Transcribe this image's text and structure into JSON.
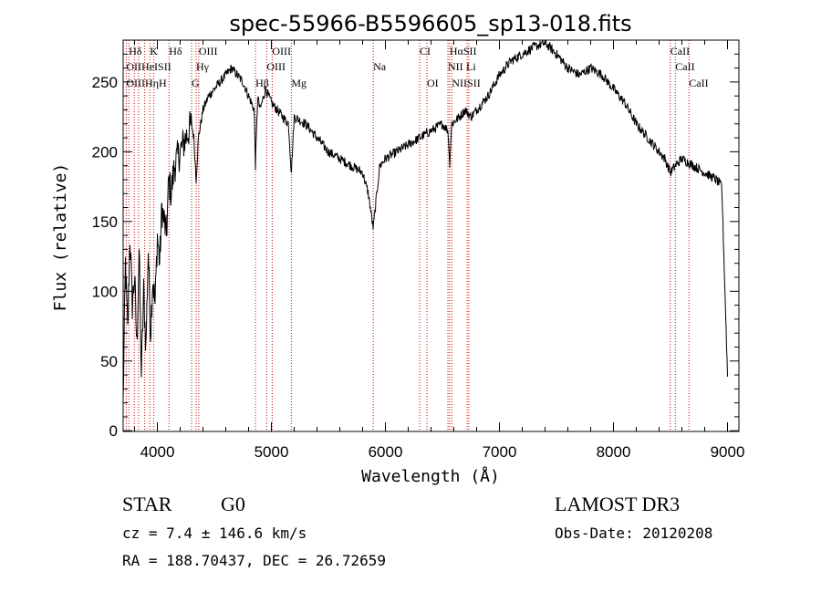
{
  "chart_data": {
    "type": "line",
    "title": "spec-55966-B5596605_sp13-018.fits",
    "xlabel": "Wavelength (Å)",
    "ylabel": "Flux (relative)",
    "xlim": [
      3700,
      9100
    ],
    "ylim": [
      -5,
      2800
    ],
    "xticks": [
      4000,
      5000,
      6000,
      7000,
      8000,
      9000
    ],
    "yticks": [
      0,
      50,
      100,
      150,
      200,
      250
    ],
    "ytick_scale": 10,
    "colors": {
      "spectrum": "#000000",
      "lines": "#cc0000",
      "axes": "#000000"
    },
    "series": [
      {
        "name": "spectrum",
        "x": [
          3700,
          3720,
          3740,
          3760,
          3780,
          3800,
          3820,
          3840,
          3860,
          3880,
          3900,
          3920,
          3940,
          3960,
          3980,
          4000,
          4020,
          4040,
          4060,
          4080,
          4100,
          4120,
          4150,
          4200,
          4250,
          4300,
          4320,
          4340,
          4360,
          4400,
          4450,
          4500,
          4550,
          4600,
          4650,
          4700,
          4750,
          4800,
          4850,
          4860,
          4880,
          4900,
          4950,
          5000,
          5050,
          5100,
          5150,
          5175,
          5200,
          5300,
          5400,
          5500,
          5600,
          5700,
          5800,
          5850,
          5893,
          5950,
          6000,
          6100,
          6200,
          6300,
          6400,
          6500,
          6550,
          6563,
          6580,
          6650,
          6700,
          6750,
          6800,
          6900,
          7000,
          7100,
          7200,
          7300,
          7400,
          7500,
          7600,
          7700,
          7800,
          7900,
          8000,
          8100,
          8200,
          8300,
          8400,
          8450,
          8500,
          8542,
          8600,
          8700,
          8800,
          8900,
          8950,
          9000
        ],
        "y": [
          200,
          1200,
          700,
          1400,
          900,
          1100,
          600,
          1300,
          400,
          1000,
          600,
          1300,
          700,
          1100,
          900,
          1400,
          1200,
          1600,
          1500,
          1400,
          1800,
          1700,
          1900,
          2000,
          2100,
          2200,
          2100,
          1800,
          2100,
          2300,
          2400,
          2450,
          2500,
          2550,
          2600,
          2550,
          2500,
          2400,
          2300,
          1900,
          2400,
          2300,
          2450,
          2350,
          2300,
          2250,
          2200,
          1850,
          2250,
          2200,
          2100,
          2000,
          1950,
          1900,
          1850,
          1700,
          1450,
          1900,
          1950,
          2000,
          2050,
          2100,
          2150,
          2200,
          2150,
          1900,
          2200,
          2250,
          2300,
          2250,
          2300,
          2400,
          2550,
          2650,
          2700,
          2750,
          2780,
          2700,
          2600,
          2550,
          2600,
          2550,
          2450,
          2350,
          2200,
          2100,
          2000,
          1950,
          1850,
          1900,
          1950,
          1900,
          1850,
          1800,
          1750,
          400
        ]
      }
    ],
    "spectral_lines": [
      {
        "name": "Hδ",
        "wl": 3750,
        "row": 1
      },
      {
        "name": "K",
        "wl": 3934,
        "row": 1
      },
      {
        "name": "Hδ",
        "wl": 4102,
        "row": 1
      },
      {
        "name": "OIII",
        "wl": 4363,
        "row": 1
      },
      {
        "name": "OIII",
        "wl": 5007,
        "row": 1
      },
      {
        "name": "CI",
        "wl": 6300,
        "row": 1
      },
      {
        "name": "HαSII",
        "wl": 6563,
        "row": 1
      },
      {
        "name": "CaII",
        "wl": 8498,
        "row": 1
      },
      {
        "name": "OIIHeISII",
        "wl": 3727,
        "row": 2
      },
      {
        "name": "Hγ",
        "wl": 4340,
        "row": 2
      },
      {
        "name": "OIII",
        "wl": 4959,
        "row": 2
      },
      {
        "name": "Na",
        "wl": 5893,
        "row": 2
      },
      {
        "name": "NII",
        "wl": 6548,
        "row": 2
      },
      {
        "name": "Li",
        "wl": 6708,
        "row": 2
      },
      {
        "name": "CaII",
        "wl": 8542,
        "row": 2
      },
      {
        "name": "OIIIHηH",
        "wl": 3727,
        "row": 3
      },
      {
        "name": "G",
        "wl": 4300,
        "row": 3
      },
      {
        "name": "Hβ",
        "wl": 4861,
        "row": 3
      },
      {
        "name": "Mg",
        "wl": 5175,
        "row": 3
      },
      {
        "name": "OI",
        "wl": 6364,
        "row": 3
      },
      {
        "name": "NIISII",
        "wl": 6583,
        "row": 3
      },
      {
        "name": "CaII",
        "wl": 8662,
        "row": 3
      }
    ],
    "line_positions": [
      3727,
      3750,
      3798,
      3835,
      3889,
      3934,
      3969,
      4102,
      4300,
      4340,
      4363,
      4861,
      4959,
      5007,
      5175,
      5893,
      6300,
      6364,
      6548,
      6563,
      6583,
      6716,
      6731,
      8498,
      8542,
      8662
    ]
  },
  "info": {
    "object_class": "STAR",
    "subclass": "G0",
    "survey": "LAMOST DR3",
    "velocity": "cz = 7.4 ± 146.6 km/s",
    "obs_date": "Obs-Date: 20120208",
    "coords": "RA = 188.70437, DEC =  26.72659"
  }
}
